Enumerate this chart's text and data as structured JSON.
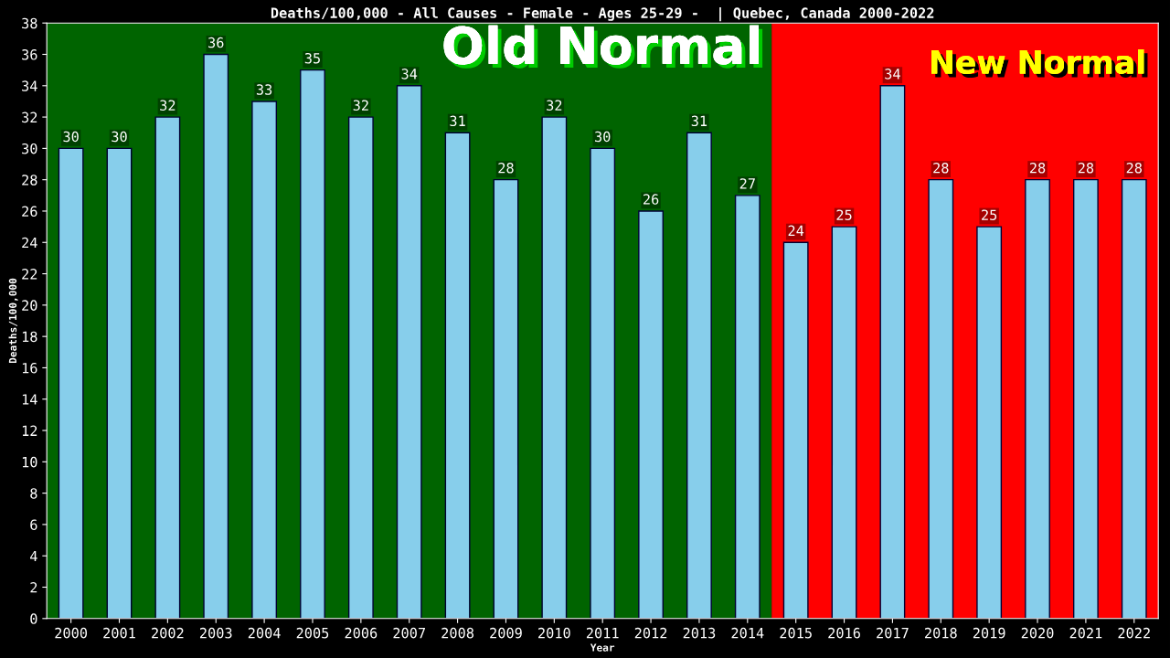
{
  "chart_data": {
    "type": "bar",
    "title": "Deaths/100,000 - All Causes - Female - Ages 25-29 -  | Quebec, Canada 2000-2022",
    "xlabel": "Year",
    "ylabel": "Deaths/100,000",
    "categories": [
      "2000",
      "2001",
      "2002",
      "2003",
      "2004",
      "2005",
      "2006",
      "2007",
      "2008",
      "2009",
      "2010",
      "2011",
      "2012",
      "2013",
      "2014",
      "2015",
      "2016",
      "2017",
      "2018",
      "2019",
      "2020",
      "2021",
      "2022"
    ],
    "values": [
      30,
      30,
      32,
      36,
      33,
      35,
      32,
      34,
      31,
      28,
      32,
      30,
      26,
      31,
      27,
      24,
      25,
      34,
      28,
      25,
      28,
      28,
      28
    ],
    "color": "#87ceeb",
    "data_labels": true,
    "ylim": [
      0,
      38
    ],
    "yticks": [
      0,
      2,
      4,
      6,
      8,
      10,
      12,
      14,
      16,
      18,
      20,
      22,
      24,
      26,
      28,
      30,
      32,
      34,
      36,
      38
    ],
    "grid": false,
    "bands": [
      {
        "axis": "x",
        "from": "2000",
        "to": "2014",
        "label": "Old Normal",
        "color": "#006400"
      },
      {
        "axis": "x",
        "from": "2015",
        "to": "2022",
        "label": "New Normal",
        "color": "#ff0000"
      }
    ]
  }
}
